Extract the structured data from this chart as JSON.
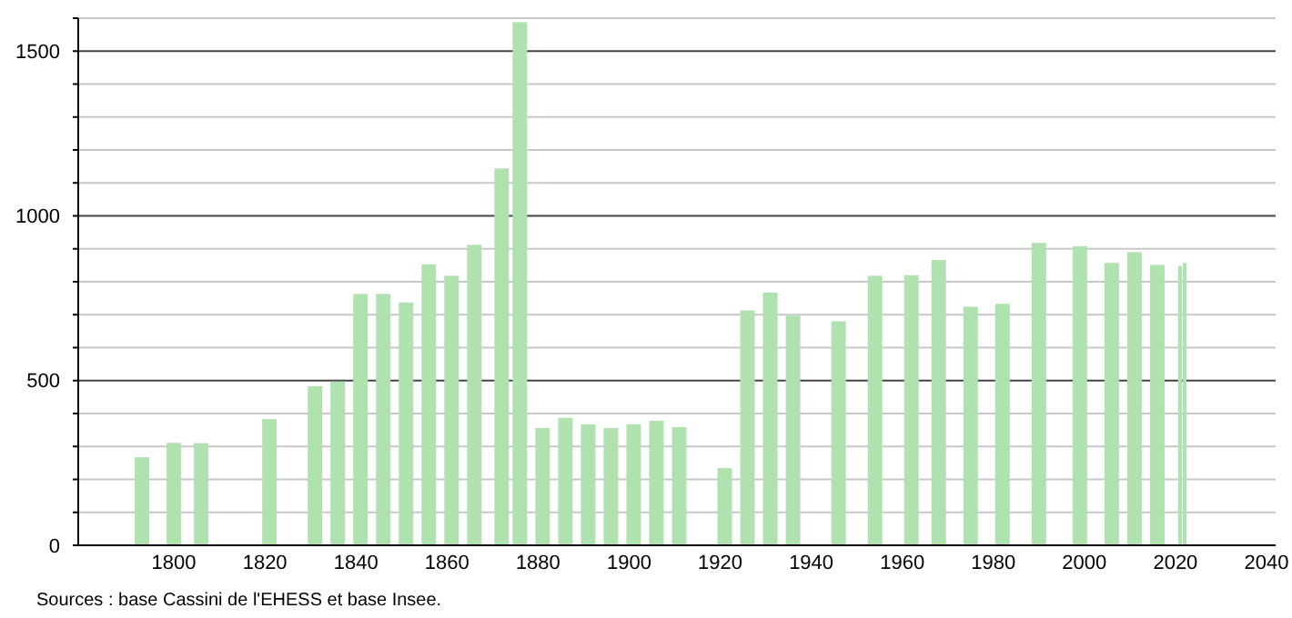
{
  "chart_data": {
    "type": "bar",
    "x": [
      1793,
      1800,
      1806,
      1821,
      1831,
      1836,
      1841,
      1846,
      1851,
      1856,
      1861,
      1866,
      1872,
      1876,
      1881,
      1886,
      1891,
      1896,
      1901,
      1906,
      1911,
      1921,
      1926,
      1931,
      1936,
      1946,
      1954,
      1962,
      1968,
      1975,
      1982,
      1990,
      1999,
      2006,
      2011,
      2016,
      2021,
      2022
    ],
    "values": [
      267,
      311,
      310,
      383,
      483,
      497,
      763,
      763,
      737,
      853,
      818,
      912,
      1144,
      1588,
      356,
      387,
      367,
      356,
      367,
      378,
      359,
      234,
      713,
      767,
      697,
      680,
      818,
      820,
      866,
      724,
      733,
      918,
      908,
      857,
      890,
      851,
      848,
      857
    ],
    "color": "#b0e2b0",
    "xlim": [
      1779,
      2042
    ],
    "xticks": [
      1800,
      1820,
      1840,
      1860,
      1880,
      1900,
      1920,
      1940,
      1960,
      1980,
      2000,
      2020,
      2040
    ],
    "ylim": [
      0,
      1600
    ],
    "yticks": [
      0,
      {
        "value": 100,
        "label": null
      },
      {
        "value": 200,
        "label": null
      },
      {
        "value": 300,
        "label": null
      },
      {
        "value": 400,
        "label": null
      },
      500,
      {
        "value": 600,
        "label": null
      },
      {
        "value": 700,
        "label": null
      },
      {
        "value": 800,
        "label": null
      },
      {
        "value": 900,
        "label": null
      },
      1000,
      {
        "value": 1100,
        "label": null
      },
      {
        "value": 1200,
        "label": null
      },
      {
        "value": 1300,
        "label": null
      },
      {
        "value": 1400,
        "label": null
      },
      1500,
      {
        "value": 1600,
        "label": null
      }
    ],
    "grid": "y",
    "annotations": [
      "Sources : base Cassini de l'EHESS et base Insee."
    ]
  }
}
